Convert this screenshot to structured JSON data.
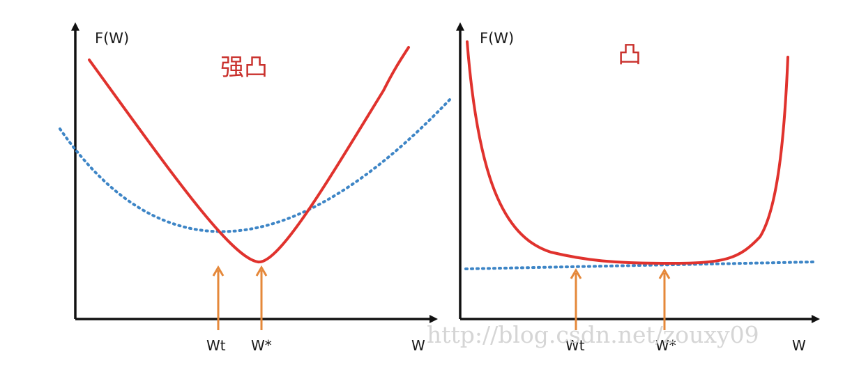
{
  "colors": {
    "axis": "#111111",
    "curve": "#e0322d",
    "tangent": "#3d85c6",
    "arrow": "#e5883a",
    "title": "#c9302c",
    "watermark": "#d5d5d5"
  },
  "panels": [
    {
      "title": "强凸",
      "y_axis_label": "F(W)",
      "x_axis_label": "W",
      "markers": [
        "Wt",
        "W*"
      ]
    },
    {
      "title": "凸",
      "y_axis_label": "F(W)",
      "x_axis_label": "W",
      "markers": [
        "Wt",
        "W*"
      ]
    }
  ],
  "watermark": "http://blog.csdn.net/zouxy09"
}
